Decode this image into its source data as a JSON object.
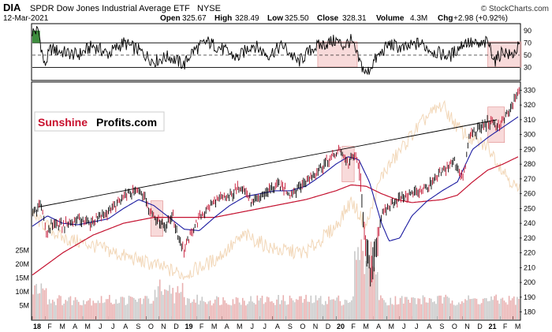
{
  "header": {
    "ticker": "DIA",
    "name": "SPDR Dow Jones Industrial Average ETF",
    "exchange": "NYSE",
    "watermark": "© StockCharts.com",
    "date": "12-Mar-2021",
    "open_label": "Open",
    "open": "325.67",
    "high_label": "High",
    "high": "328.49",
    "low_label": "Low",
    "low": "325.50",
    "close_label": "Close",
    "close": "328.31",
    "volume_label": "Volume",
    "volume": "4.3M",
    "chg_label": "Chg",
    "chg": "+2.98 (+0.92%)"
  },
  "logo": {
    "part1": "Sunshine",
    "part2": "Profits.com"
  },
  "colors": {
    "price_bar": "#000000",
    "ma50": "#1a1aa0",
    "ma200": "#c41230",
    "trendline": "#000000",
    "comparison": "#f2d7b8",
    "volume": "#e9b0b0",
    "highlight": "#f3c1c1",
    "rsi_line": "#000000",
    "rsi_fill": "#3d8c3d",
    "logo_red": "#c8102e"
  },
  "chart_data": [
    {
      "type": "line",
      "panel": "rsi",
      "y_ticks": [
        "90",
        "70",
        "50",
        "30"
      ],
      "y_tick_values": [
        90,
        70,
        50,
        30
      ],
      "ylim": [
        10,
        100
      ],
      "reference_lines": [
        70,
        50,
        30
      ],
      "series": [
        {
          "x": [
            2018.0,
            2018.04,
            2018.08,
            2018.12,
            2018.2,
            2018.3,
            2018.4,
            2018.5,
            2018.6,
            2018.7,
            2018.8,
            2018.9,
            2019.0,
            2019.05,
            2019.15,
            2019.25,
            2019.35,
            2019.45,
            2019.55,
            2019.65,
            2019.75,
            2019.85,
            2019.95,
            2020.0,
            2020.05,
            2020.1,
            2020.15,
            2020.2,
            2020.25,
            2020.35,
            2020.45,
            2020.55,
            2020.65,
            2020.75,
            2020.85,
            2020.95,
            2021.0,
            2021.05,
            2021.1,
            2021.15,
            2021.2
          ],
          "y": [
            88,
            90,
            32,
            60,
            55,
            50,
            65,
            52,
            70,
            58,
            40,
            48,
            34,
            55,
            72,
            60,
            45,
            68,
            50,
            66,
            38,
            62,
            70,
            74,
            65,
            74,
            42,
            18,
            40,
            68,
            60,
            70,
            55,
            48,
            72,
            65,
            72,
            40,
            58,
            48,
            62
          ]
        }
      ]
    },
    {
      "type": "line",
      "panel": "price",
      "x_ticks": [
        "18",
        "F",
        "M",
        "A",
        "M",
        "J",
        "J",
        "A",
        "S",
        "O",
        "N",
        "D",
        "19",
        "F",
        "M",
        "A",
        "M",
        "J",
        "J",
        "A",
        "S",
        "O",
        "N",
        "D",
        "20",
        "F",
        "M",
        "A",
        "M",
        "J",
        "J",
        "A",
        "S",
        "O",
        "N",
        "D",
        "21",
        "F",
        "M"
      ],
      "y_ticks": [
        "330",
        "320",
        "310",
        "300",
        "290",
        "280",
        "270",
        "260",
        "250",
        "240",
        "230",
        "220",
        "210",
        "200",
        "190",
        "180"
      ],
      "y_tick_values": [
        330,
        320,
        310,
        300,
        290,
        280,
        270,
        260,
        250,
        240,
        230,
        220,
        210,
        200,
        190,
        180
      ],
      "ylim": [
        175,
        335
      ],
      "volume_ticks": [
        "25M",
        "20M",
        "15M",
        "10M",
        "5M"
      ],
      "volume_tick_values": [
        25,
        20,
        15,
        10,
        5
      ],
      "volume_max": 30,
      "series": [
        {
          "role": "price",
          "x": [
            2018.0,
            2018.03,
            2018.06,
            2018.09,
            2018.13,
            2018.2,
            2018.3,
            2018.38,
            2018.46,
            2018.55,
            2018.63,
            2018.72,
            2018.78,
            2018.83,
            2018.88,
            2018.92,
            2018.96,
            2019.0,
            2019.04,
            2019.1,
            2019.2,
            2019.3,
            2019.38,
            2019.45,
            2019.55,
            2019.63,
            2019.7,
            2019.8,
            2019.88,
            2019.96,
            2020.03,
            2020.08,
            2020.12,
            2020.15,
            2020.17,
            2020.2,
            2020.23,
            2020.3,
            2020.38,
            2020.45,
            2020.55,
            2020.63,
            2020.7,
            2020.78,
            2020.84,
            2020.88,
            2020.92,
            2021.0,
            2021.08,
            2021.14,
            2021.2
          ],
          "y": [
            245,
            250,
            253,
            232,
            240,
            238,
            243,
            240,
            245,
            252,
            260,
            262,
            248,
            242,
            238,
            246,
            232,
            221,
            232,
            244,
            255,
            258,
            266,
            253,
            262,
            266,
            260,
            268,
            276,
            283,
            290,
            280,
            286,
            280,
            255,
            222,
            205,
            245,
            255,
            258,
            262,
            266,
            275,
            282,
            270,
            300,
            302,
            308,
            306,
            315,
            328
          ]
        },
        {
          "role": "ma50",
          "x": [
            2018.0,
            2018.1,
            2018.2,
            2018.3,
            2018.4,
            2018.5,
            2018.6,
            2018.7,
            2018.8,
            2018.9,
            2019.0,
            2019.1,
            2019.2,
            2019.3,
            2019.4,
            2019.5,
            2019.6,
            2019.7,
            2019.8,
            2019.9,
            2020.0,
            2020.08,
            2020.15,
            2020.22,
            2020.3,
            2020.35,
            2020.42,
            2020.5,
            2020.6,
            2020.7,
            2020.8,
            2020.9,
            2021.0,
            2021.1,
            2021.2
          ],
          "y": [
            238,
            245,
            240,
            239,
            241,
            243,
            250,
            256,
            252,
            244,
            236,
            235,
            244,
            252,
            258,
            260,
            262,
            262,
            265,
            272,
            280,
            285,
            283,
            268,
            240,
            228,
            230,
            245,
            255,
            262,
            268,
            290,
            298,
            305,
            312
          ]
        },
        {
          "role": "ma200",
          "x": [
            2018.0,
            2018.2,
            2018.4,
            2018.6,
            2018.8,
            2019.0,
            2019.2,
            2019.4,
            2019.6,
            2019.8,
            2020.0,
            2020.1,
            2020.2,
            2020.3,
            2020.4,
            2020.5,
            2020.6,
            2020.7,
            2020.8,
            2020.9,
            2021.0,
            2021.1,
            2021.2
          ],
          "y": [
            205,
            220,
            232,
            240,
            244,
            244,
            244,
            248,
            252,
            256,
            262,
            266,
            265,
            260,
            256,
            254,
            255,
            256,
            259,
            268,
            276,
            280,
            285
          ]
        },
        {
          "role": "trendline",
          "x": [
            2018.04,
            2021.06
          ],
          "y": [
            251,
            310
          ]
        },
        {
          "role": "comparison",
          "x": [
            2018.0,
            2018.2,
            2018.4,
            2018.6,
            2018.8,
            2019.0,
            2019.2,
            2019.4,
            2019.6,
            2019.8,
            2020.0,
            2020.1,
            2020.2,
            2020.3,
            2020.4,
            2020.5,
            2020.6,
            2020.7,
            2020.8,
            2020.9,
            2021.0,
            2021.1,
            2021.2
          ],
          "y": [
            245,
            230,
            225,
            218,
            212,
            205,
            215,
            232,
            222,
            220,
            238,
            255,
            238,
            272,
            286,
            300,
            312,
            320,
            305,
            296,
            292,
            276,
            262
          ]
        }
      ],
      "highlights": [
        {
          "x": [
            2018.78,
            2018.86
          ],
          "panel": "price"
        },
        {
          "x": [
            2020.04,
            2020.12
          ],
          "panel": "price"
        },
        {
          "x": [
            2021.0,
            2021.11
          ],
          "panel": "price"
        },
        {
          "x": [
            2019.88,
            2020.14
          ],
          "panel": "rsi"
        },
        {
          "x": [
            2021.0,
            2021.22
          ],
          "panel": "rsi"
        }
      ]
    }
  ]
}
